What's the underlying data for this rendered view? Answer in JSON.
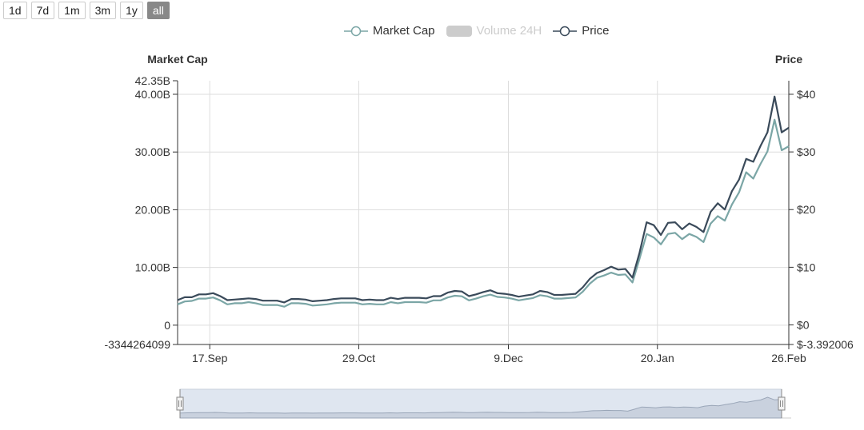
{
  "range_buttons": [
    {
      "label": "1d",
      "active": false
    },
    {
      "label": "7d",
      "active": false
    },
    {
      "label": "1m",
      "active": false
    },
    {
      "label": "3m",
      "active": false
    },
    {
      "label": "1y",
      "active": false
    },
    {
      "label": "all",
      "active": true
    }
  ],
  "legend": [
    {
      "name": "Market Cap",
      "color": "#7ba6a6",
      "enabled": true
    },
    {
      "name": "Volume 24H",
      "color": "#cccccc",
      "enabled": false
    },
    {
      "name": "Price",
      "color": "#3a4a5a",
      "enabled": true
    }
  ],
  "chart_data": {
    "type": "line",
    "left_axis": {
      "label": "Market Cap",
      "ticks": [
        {
          "value": 42350000000,
          "label": "42.35B"
        },
        {
          "value": 40000000000,
          "label": "40.00B"
        },
        {
          "value": 30000000000,
          "label": "30.00B"
        },
        {
          "value": 20000000000,
          "label": "20.00B"
        },
        {
          "value": 10000000000,
          "label": "10.00B"
        },
        {
          "value": 0,
          "label": "0"
        },
        {
          "value": -3344264099,
          "label": "-3344264099"
        }
      ],
      "range": [
        -3344264099,
        42350000000
      ]
    },
    "right_axis": {
      "label": "Price",
      "ticks": [
        {
          "value": 40,
          "label": "$40"
        },
        {
          "value": 30,
          "label": "$30"
        },
        {
          "value": 20,
          "label": "$20"
        },
        {
          "value": 10,
          "label": "$10"
        },
        {
          "value": 0,
          "label": "$0"
        },
        {
          "value": -3.392006,
          "label": "$-3.392006"
        }
      ],
      "range": [
        -3.392006,
        42.35
      ]
    },
    "x_axis": {
      "ticks": [
        "17.Sep",
        "29.Oct",
        "9.Dec",
        "20.Jan",
        "26.Feb"
      ]
    },
    "series": [
      {
        "name": "Market Cap",
        "color": "#7ba6a6",
        "axis": "left",
        "values": [
          3.6,
          4.1,
          4.2,
          4.6,
          4.6,
          4.8,
          4.3,
          3.6,
          3.8,
          3.8,
          4.0,
          3.8,
          3.5,
          3.5,
          3.5,
          3.2,
          3.8,
          3.8,
          3.7,
          3.4,
          3.5,
          3.6,
          3.8,
          3.9,
          3.9,
          3.9,
          3.6,
          3.7,
          3.6,
          3.6,
          4.0,
          3.8,
          4.0,
          4.0,
          4.0,
          3.9,
          4.3,
          4.3,
          4.8,
          5.1,
          5.0,
          4.3,
          4.6,
          5.0,
          5.3,
          4.9,
          4.8,
          4.6,
          4.3,
          4.5,
          4.7,
          5.2,
          5.0,
          4.6,
          4.6,
          4.7,
          4.8,
          5.8,
          7.2,
          8.2,
          8.6,
          9.1,
          8.7,
          8.8,
          7.4,
          11.5,
          15.8,
          15.2,
          14.0,
          15.8,
          16.0,
          14.9,
          15.8,
          15.3,
          14.4,
          17.6,
          18.9,
          18.1,
          20.9,
          23.0,
          26.5,
          25.4,
          27.9,
          30.1,
          35.6,
          30.3,
          31.0
        ]
      },
      {
        "name": "Price",
        "color": "#3a4a5a",
        "axis": "right",
        "values": [
          4.3,
          4.8,
          4.8,
          5.3,
          5.3,
          5.5,
          5.0,
          4.3,
          4.4,
          4.5,
          4.6,
          4.5,
          4.2,
          4.2,
          4.2,
          3.9,
          4.5,
          4.5,
          4.4,
          4.1,
          4.2,
          4.3,
          4.5,
          4.6,
          4.6,
          4.6,
          4.3,
          4.4,
          4.3,
          4.3,
          4.7,
          4.5,
          4.7,
          4.7,
          4.7,
          4.6,
          5.0,
          5.0,
          5.6,
          5.9,
          5.8,
          5.0,
          5.3,
          5.7,
          6.0,
          5.5,
          5.4,
          5.2,
          4.9,
          5.1,
          5.3,
          5.9,
          5.7,
          5.2,
          5.2,
          5.3,
          5.4,
          6.5,
          8.0,
          9.0,
          9.5,
          10.1,
          9.6,
          9.7,
          8.2,
          12.5,
          17.8,
          17.3,
          15.6,
          17.7,
          17.8,
          16.6,
          17.6,
          17.0,
          16.1,
          19.6,
          21.1,
          20.0,
          23.2,
          25.2,
          28.8,
          28.3,
          31.0,
          33.4,
          39.6,
          33.4,
          34.2
        ]
      }
    ]
  }
}
